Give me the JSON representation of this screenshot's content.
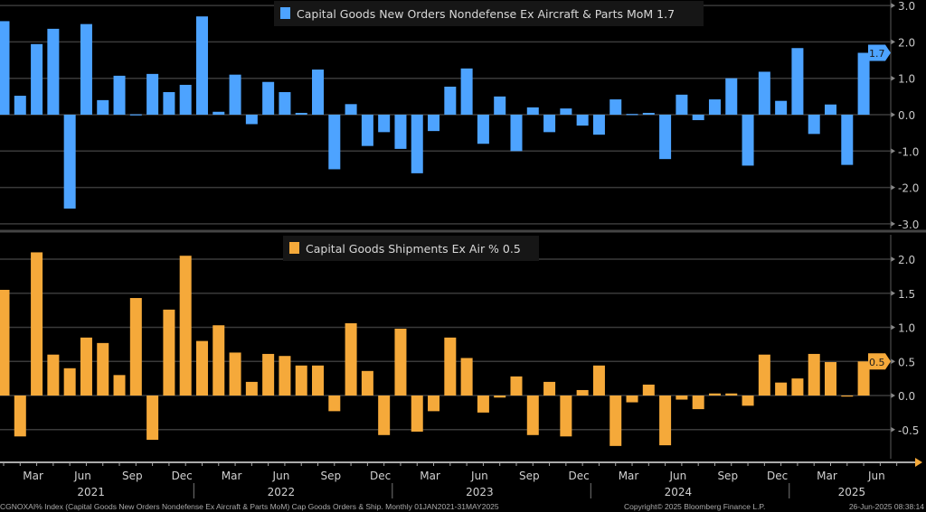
{
  "chart_data": [
    {
      "type": "bar",
      "title": "Capital Goods New Orders Nondefense Ex Aircraft & Parts MoM 1.7",
      "legend": "Capital Goods New Orders Nondefense Ex Aircraft & Parts MoM 1.7",
      "legend_position": "top-center",
      "color": "#4da3ff",
      "last_value_label": "1.7",
      "last_value": 1.7,
      "ylim": [
        -3.2,
        3.2
      ],
      "yticks": [
        3.0,
        2.0,
        1.0,
        0.0,
        -1.0,
        -2.0,
        -3.0
      ],
      "ytick_labels": [
        "3.0",
        "2.0",
        "1.0",
        "0.0",
        "-1.0",
        "-2.0",
        "-3.0"
      ],
      "grid": true,
      "x_start": "2021-01",
      "frequency": "monthly",
      "values": [
        2.57,
        0.52,
        1.94,
        2.36,
        -2.58,
        2.49,
        0.4,
        1.07,
        0.01,
        1.12,
        0.62,
        0.82,
        2.7,
        0.08,
        1.1,
        -0.26,
        0.9,
        0.62,
        0.05,
        1.24,
        -1.5,
        0.29,
        -0.86,
        -0.48,
        -0.94,
        -1.61,
        -0.45,
        0.77,
        1.27,
        -0.8,
        0.5,
        -1.0,
        0.2,
        -0.48,
        0.17,
        -0.3,
        -0.55,
        0.42,
        0.02,
        0.05,
        -1.22,
        0.55,
        -0.15,
        0.42,
        1.0,
        -1.4,
        1.18,
        0.38,
        1.83,
        -0.53,
        0.28,
        -1.38,
        1.7
      ]
    },
    {
      "type": "bar",
      "title": "Capital Goods Shipments Ex Air % 0.5",
      "legend": "Capital Goods Shipments Ex Air % 0.5",
      "legend_position": "top-center",
      "color": "#f5a93a",
      "last_value_label": "0.5",
      "last_value": 0.5,
      "ylim": [
        -0.9,
        2.3
      ],
      "yticks": [
        2.0,
        1.5,
        1.0,
        0.5,
        0.0,
        -0.5
      ],
      "ytick_labels": [
        "2.0",
        "1.5",
        "1.0",
        "0.5",
        "0.0",
        "-0.5"
      ],
      "grid": true,
      "x_start": "2021-01",
      "frequency": "monthly",
      "values": [
        1.55,
        -0.6,
        2.1,
        0.6,
        0.4,
        0.85,
        0.77,
        0.3,
        1.43,
        -0.65,
        1.26,
        2.05,
        0.8,
        1.03,
        0.63,
        0.2,
        0.61,
        0.58,
        0.44,
        0.44,
        -0.23,
        1.06,
        0.36,
        -0.58,
        0.98,
        -0.53,
        -0.23,
        0.85,
        0.55,
        -0.25,
        -0.03,
        0.28,
        -0.58,
        0.2,
        -0.6,
        0.08,
        0.44,
        -0.74,
        -0.1,
        0.16,
        -0.73,
        -0.06,
        -0.2,
        0.03,
        0.03,
        -0.15,
        0.6,
        0.19,
        0.25,
        0.61,
        0.49,
        0.0,
        0.5
      ]
    }
  ],
  "x_axis": {
    "month_ticks": [
      {
        "label": "Mar",
        "index": 2
      },
      {
        "label": "Jun",
        "index": 5
      },
      {
        "label": "Sep",
        "index": 8
      },
      {
        "label": "Dec",
        "index": 11
      },
      {
        "label": "Mar",
        "index": 14
      },
      {
        "label": "Jun",
        "index": 17
      },
      {
        "label": "Sep",
        "index": 20
      },
      {
        "label": "Dec",
        "index": 23
      },
      {
        "label": "Mar",
        "index": 26
      },
      {
        "label": "Jun",
        "index": 29
      },
      {
        "label": "Sep",
        "index": 32
      },
      {
        "label": "Dec",
        "index": 35
      },
      {
        "label": "Mar",
        "index": 38
      },
      {
        "label": "Jun",
        "index": 41
      },
      {
        "label": "Sep",
        "index": 44
      },
      {
        "label": "Dec",
        "index": 47
      },
      {
        "label": "Mar",
        "index": 50
      },
      {
        "label": "Jun",
        "index": 53
      }
    ],
    "year_labels": [
      {
        "label": "2021",
        "index": 5.5
      },
      {
        "label": "2022",
        "index": 17
      },
      {
        "label": "2023",
        "index": 29
      },
      {
        "label": "2024",
        "index": 41
      },
      {
        "label": "2025",
        "index": 51.5
      }
    ]
  },
  "footer": {
    "source": "CGNOXAI% Index (Capital Goods New Orders Nondefense Ex Aircraft & Parts MoM) Cap Goods Orders & Ship. Monthly 01JAN2021-31MAY2025",
    "copyright": "Copyright© 2025 Bloomberg Finance L.P.",
    "timestamp": "26-Jun-2025 08:38:14"
  }
}
